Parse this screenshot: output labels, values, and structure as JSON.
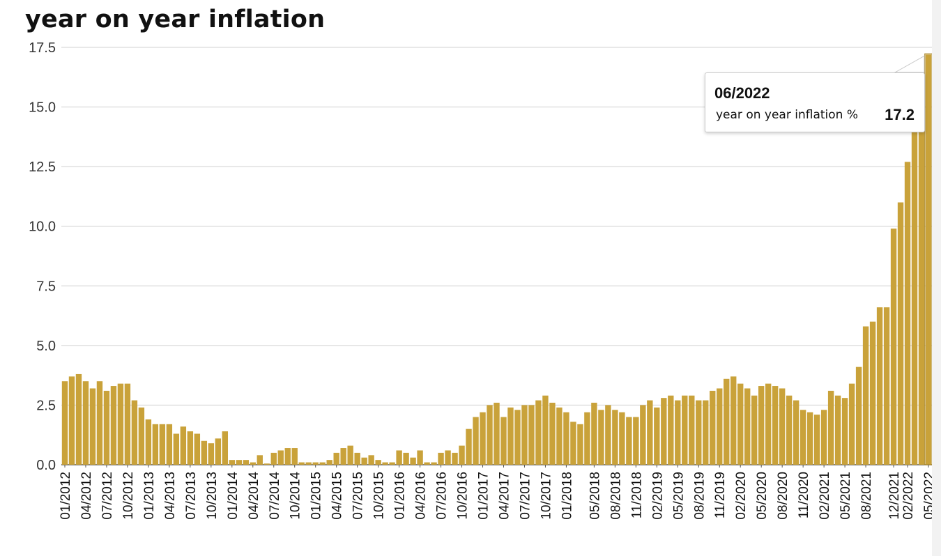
{
  "title": "year on year inflation",
  "colors": {
    "bar": "#C9A23A",
    "grid": "#d0d0d0",
    "axis": "#555555",
    "highlight": "#a8862c"
  },
  "tooltip": {
    "date": "06/2022",
    "label": "year on year inflation %",
    "value": "17.2"
  },
  "chart_data": {
    "type": "bar",
    "title": "year on year inflation",
    "xlabel": "",
    "ylabel": "",
    "ylim": [
      0,
      17.5
    ],
    "yticks": [
      "0.0",
      "2.5",
      "5.0",
      "7.5",
      "10.0",
      "12.5",
      "15.0",
      "17.5"
    ],
    "grid": true,
    "start_month": "01/2012",
    "xtick_labels": [
      "01/2012",
      "04/2012",
      "07/2012",
      "10/2012",
      "01/2013",
      "04/2013",
      "07/2013",
      "10/2013",
      "01/2014",
      "04/2014",
      "07/2014",
      "10/2014",
      "01/2015",
      "04/2015",
      "07/2015",
      "10/2015",
      "01/2016",
      "04/2016",
      "07/2016",
      "10/2016",
      "01/2017",
      "04/2017",
      "07/2017",
      "10/2017",
      "01/2018",
      "05/2018",
      "08/2018",
      "11/2018",
      "02/2019",
      "05/2019",
      "08/2019",
      "11/2019",
      "02/2020",
      "05/2020",
      "08/2020",
      "11/2020",
      "02/2021",
      "05/2021",
      "08/2021",
      "12/2021",
      "02/2022",
      "05/2022"
    ],
    "series": [
      {
        "values": [
          3.5,
          3.7,
          3.8,
          3.5,
          3.2,
          3.5,
          3.1,
          3.3,
          3.4,
          3.4,
          2.7,
          2.4,
          1.9,
          1.7,
          1.7,
          1.7,
          1.3,
          1.6,
          1.4,
          1.3,
          1.0,
          0.9,
          1.1,
          1.4,
          0.2,
          0.2,
          0.2,
          0.1,
          0.4,
          0.05,
          0.5,
          0.6,
          0.7,
          0.7,
          0.1,
          0.1,
          0.1,
          0.1,
          0.2,
          0.5,
          0.7,
          0.8,
          0.5,
          0.3,
          0.4,
          0.2,
          0.1,
          0.1,
          0.6,
          0.5,
          0.3,
          0.6,
          0.1,
          0.1,
          0.5,
          0.6,
          0.5,
          0.8,
          1.5,
          2.0,
          2.2,
          2.5,
          2.6,
          2.0,
          2.4,
          2.3,
          2.5,
          2.5,
          2.7,
          2.9,
          2.6,
          2.4,
          2.2,
          1.8,
          1.7,
          2.2,
          2.6,
          2.3,
          2.5,
          2.3,
          2.2,
          2.0,
          2.0,
          2.5,
          2.7,
          2.4,
          2.8,
          2.9,
          2.7,
          2.9,
          2.9,
          2.7,
          2.7,
          3.1,
          3.2,
          3.6,
          3.7,
          3.4,
          3.2,
          2.9,
          3.3,
          3.4,
          3.3,
          3.2,
          2.9,
          2.7,
          2.3,
          2.2,
          2.1,
          2.3,
          3.1,
          2.9,
          2.8,
          3.4,
          4.1,
          5.8,
          6.0,
          6.6,
          6.6,
          9.9,
          11.0,
          12.7,
          14.0,
          14.1,
          17.2
        ]
      }
    ]
  }
}
